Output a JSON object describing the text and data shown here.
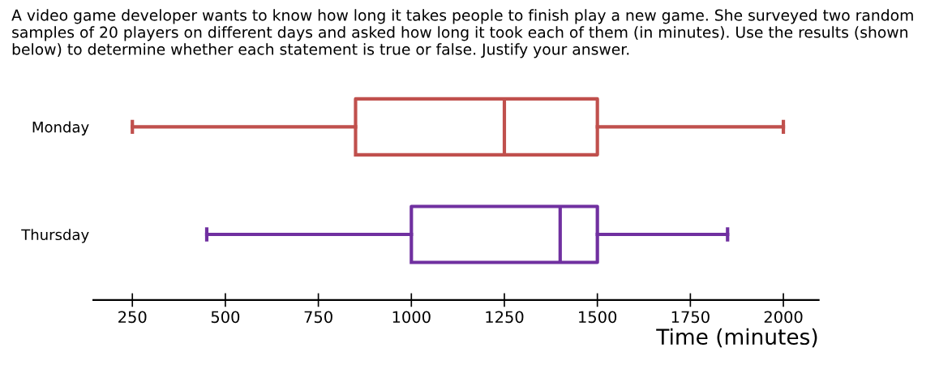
{
  "chart_data": {
    "type": "box",
    "orientation": "horizontal",
    "title": "A video game developer wants to know how long it takes people to finish play a new game. She surveyed two random samples of 20 players on different days and asked how long it took each of them (in minutes). Use the results (shown below) to determine whether each statement is true or false. Justify your answer.",
    "categories": [
      "Monday",
      "Thursday"
    ],
    "colors": [
      "#c0504d",
      "#7030a0"
    ],
    "boxes": [
      {
        "low": 250,
        "q1": 850,
        "median": 1250,
        "q3": 1500,
        "high": 2000
      },
      {
        "low": 450,
        "q1": 1000,
        "median": 1400,
        "q3": 1500,
        "high": 1850
      }
    ],
    "xlabel": "Time (minutes)",
    "xlim": [
      145,
      2095
    ],
    "xticks": [
      250,
      500,
      750,
      1000,
      1250,
      1500,
      1750,
      2000
    ],
    "grid": false,
    "legend": false
  }
}
